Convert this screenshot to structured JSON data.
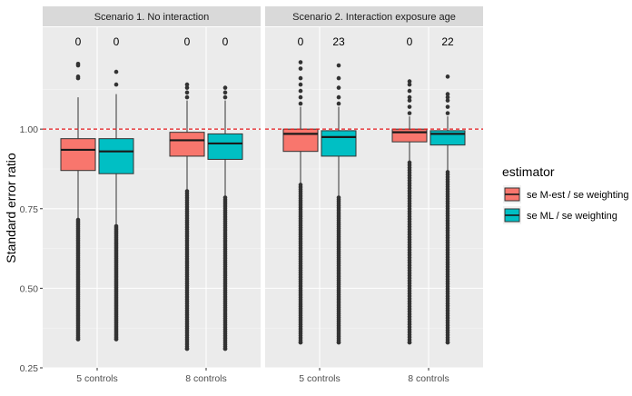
{
  "chart_data": {
    "type": "boxplot",
    "ylabel": "Standard error ratio",
    "ylim": [
      0.25,
      1.32
    ],
    "y_ticks": [
      0.25,
      0.5,
      0.75,
      1.0
    ],
    "y_tick_labels": [
      "0.25",
      "0.50",
      "0.75",
      "1.00"
    ],
    "reference_line": {
      "y": 1.0,
      "color": "#E41A1C",
      "style": "dashed"
    },
    "panel_background": "#EBEBEB",
    "strip_background": "#D9D9D9",
    "legend": {
      "title": "estimator",
      "position": "right",
      "items": [
        {
          "label": "se M-est / se weighting",
          "color": "#F8766D"
        },
        {
          "label": "se ML / se weighting",
          "color": "#00BFC4"
        }
      ]
    },
    "panels": [
      {
        "title": "Scenario 1. No interaction",
        "categories": [
          "5 controls",
          "8 controls"
        ],
        "groups": [
          {
            "category": "5 controls",
            "boxes": [
              {
                "series": "se M-est / se weighting",
                "q1": 0.87,
                "median": 0.935,
                "q3": 0.97,
                "whisker_low": 0.72,
                "whisker_high": 1.1,
                "count_label": "0",
                "outliers_high": [
                  1.16,
                  1.165,
                  1.2,
                  1.205
                ],
                "outlier_low_range": [
                  0.34,
                  0.715
                ]
              },
              {
                "series": "se ML / se weighting",
                "q1": 0.86,
                "median": 0.93,
                "q3": 0.97,
                "whisker_low": 0.7,
                "whisker_high": 1.11,
                "count_label": "0",
                "outliers_high": [
                  1.14,
                  1.18
                ],
                "outlier_low_range": [
                  0.34,
                  0.695
                ]
              }
            ]
          },
          {
            "category": "8 controls",
            "boxes": [
              {
                "series": "se M-est / se weighting",
                "q1": 0.915,
                "median": 0.965,
                "q3": 0.99,
                "whisker_low": 0.81,
                "whisker_high": 1.09,
                "count_label": "0",
                "outliers_high": [
                  1.1,
                  1.115,
                  1.13,
                  1.14
                ],
                "outlier_low_range": [
                  0.31,
                  0.805
                ]
              },
              {
                "series": "se ML / se weighting",
                "q1": 0.905,
                "median": 0.955,
                "q3": 0.985,
                "whisker_low": 0.79,
                "whisker_high": 1.09,
                "count_label": "0",
                "outliers_high": [
                  1.1,
                  1.115,
                  1.13
                ],
                "outlier_low_range": [
                  0.31,
                  0.785
                ]
              }
            ]
          }
        ]
      },
      {
        "title": "Scenario 2. Interaction exposure age",
        "categories": [
          "5 controls",
          "8 controls"
        ],
        "groups": [
          {
            "category": "5 controls",
            "boxes": [
              {
                "series": "se M-est / se weighting",
                "q1": 0.93,
                "median": 0.985,
                "q3": 1.0,
                "whisker_low": 0.83,
                "whisker_high": 1.07,
                "count_label": "0",
                "outliers_high": [
                  1.08,
                  1.1,
                  1.12,
                  1.14,
                  1.16,
                  1.19,
                  1.21
                ],
                "outlier_low_range": [
                  0.33,
                  0.825
                ]
              },
              {
                "series": "se ML / se weighting",
                "q1": 0.915,
                "median": 0.975,
                "q3": 0.995,
                "whisker_low": 0.79,
                "whisker_high": 1.07,
                "count_label": "23",
                "outliers_high": [
                  1.08,
                  1.1,
                  1.13,
                  1.16,
                  1.2
                ],
                "outlier_low_range": [
                  0.33,
                  0.785
                ]
              }
            ]
          },
          {
            "category": "8 controls",
            "boxes": [
              {
                "series": "se M-est / se weighting",
                "q1": 0.96,
                "median": 0.99,
                "q3": 1.0,
                "whisker_low": 0.9,
                "whisker_high": 1.04,
                "count_label": "0",
                "outliers_high": [
                  1.05,
                  1.07,
                  1.09,
                  1.1,
                  1.12,
                  1.14,
                  1.15
                ],
                "outlier_low_range": [
                  0.33,
                  0.895
                ]
              },
              {
                "series": "se ML / se weighting",
                "q1": 0.95,
                "median": 0.985,
                "q3": 0.995,
                "whisker_low": 0.87,
                "whisker_high": 1.04,
                "count_label": "22",
                "outliers_high": [
                  1.05,
                  1.07,
                  1.09,
                  1.1,
                  1.11,
                  1.165
                ],
                "outlier_low_range": [
                  0.33,
                  0.865
                ]
              }
            ]
          }
        ]
      }
    ]
  }
}
